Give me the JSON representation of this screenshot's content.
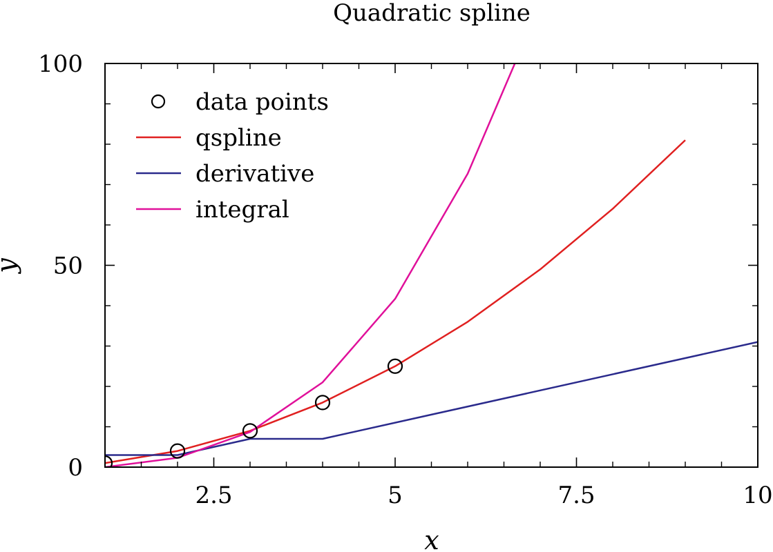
{
  "chart_data": {
    "type": "line",
    "title": "Quadratic spline",
    "xlabel": "x",
    "ylabel": "y",
    "xlim": [
      1,
      10
    ],
    "ylim": [
      0,
      100
    ],
    "xticks": [
      2.5,
      5,
      7.5,
      10
    ],
    "xtick_labels": [
      "2.5",
      "5",
      "7.5",
      "10"
    ],
    "yticks": [
      0,
      50,
      100
    ],
    "ytick_labels": [
      "0",
      "50",
      "100"
    ],
    "xminor": [
      1.5,
      2,
      3,
      3.5,
      4,
      4.5,
      5.5,
      6,
      6.5,
      7,
      8,
      8.5,
      9,
      9.5
    ],
    "yminor": [
      10,
      20,
      30,
      40,
      60,
      70,
      80,
      90
    ],
    "grid": false,
    "legend_position": "top-left",
    "data_points": {
      "name": "data points",
      "x": [
        1,
        2,
        3,
        4,
        5
      ],
      "y": [
        1,
        4,
        9,
        16,
        25
      ]
    },
    "series": [
      {
        "name": "qspline",
        "color": "#e02020",
        "x": [
          1,
          2,
          3,
          4,
          5,
          6,
          7,
          8,
          9
        ],
        "y": [
          1,
          4,
          9,
          16,
          25,
          36,
          49,
          64,
          81
        ]
      },
      {
        "name": "derivative",
        "color": "#2a2a8c",
        "x": [
          1,
          2,
          3,
          4,
          10
        ],
        "y": [
          3,
          3,
          7,
          7,
          31
        ]
      },
      {
        "name": "integral",
        "color": "#e0109a",
        "x": [
          1,
          2,
          3,
          4,
          5,
          6,
          6.65
        ],
        "y": [
          0,
          2.3,
          8.7,
          21,
          41.7,
          72.7,
          100
        ]
      }
    ]
  }
}
